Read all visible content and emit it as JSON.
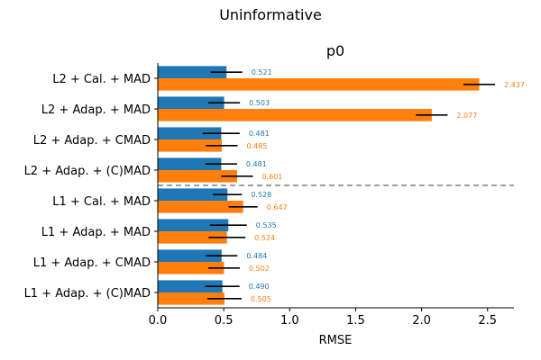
{
  "chart_data": {
    "type": "bar",
    "orientation": "horizontal",
    "suptitle": "Uninformative",
    "title": "p0",
    "xlabel": "RMSE",
    "ylabel": "",
    "xlim": [
      0,
      2.7
    ],
    "xticks": [
      0.0,
      0.5,
      1.0,
      1.5,
      2.0,
      2.5
    ],
    "xtick_labels": [
      "0.0",
      "0.5",
      "1.0",
      "1.5",
      "2.0",
      "2.5"
    ],
    "categories": [
      "L2 + Cal. + MAD",
      "L2 + Adap. + MAD",
      "L2 + Adap. + CMAD",
      "L2 + Adap. + (C)MAD",
      "L1 + Cal. + MAD",
      "L1 + Adap. + MAD",
      "L1 + Adap. + CMAD",
      "L1 + Adap. + (C)MAD"
    ],
    "series": [
      {
        "color": "#1f77b4",
        "values": [
          0.521,
          0.503,
          0.481,
          0.481,
          0.528,
          0.535,
          0.484,
          0.49
        ],
        "labels": [
          "0.521",
          "0.503",
          "0.481",
          "0.481",
          "0.528",
          "0.535",
          "0.484",
          "0.490"
        ],
        "err": [
          0.12,
          0.12,
          0.14,
          0.12,
          0.11,
          0.14,
          0.12,
          0.13
        ]
      },
      {
        "color": "#ff7f0e",
        "values": [
          2.437,
          2.077,
          0.485,
          0.601,
          0.647,
          0.524,
          0.502,
          0.505
        ],
        "labels": [
          "2.437",
          "2.077",
          "0.485",
          "0.601",
          "0.647",
          "0.524",
          "0.502",
          "0.505"
        ],
        "err": [
          0.12,
          0.12,
          0.12,
          0.12,
          0.11,
          0.14,
          0.12,
          0.13
        ]
      }
    ],
    "separator_after_index": 3,
    "grid": false,
    "legend": "none"
  }
}
